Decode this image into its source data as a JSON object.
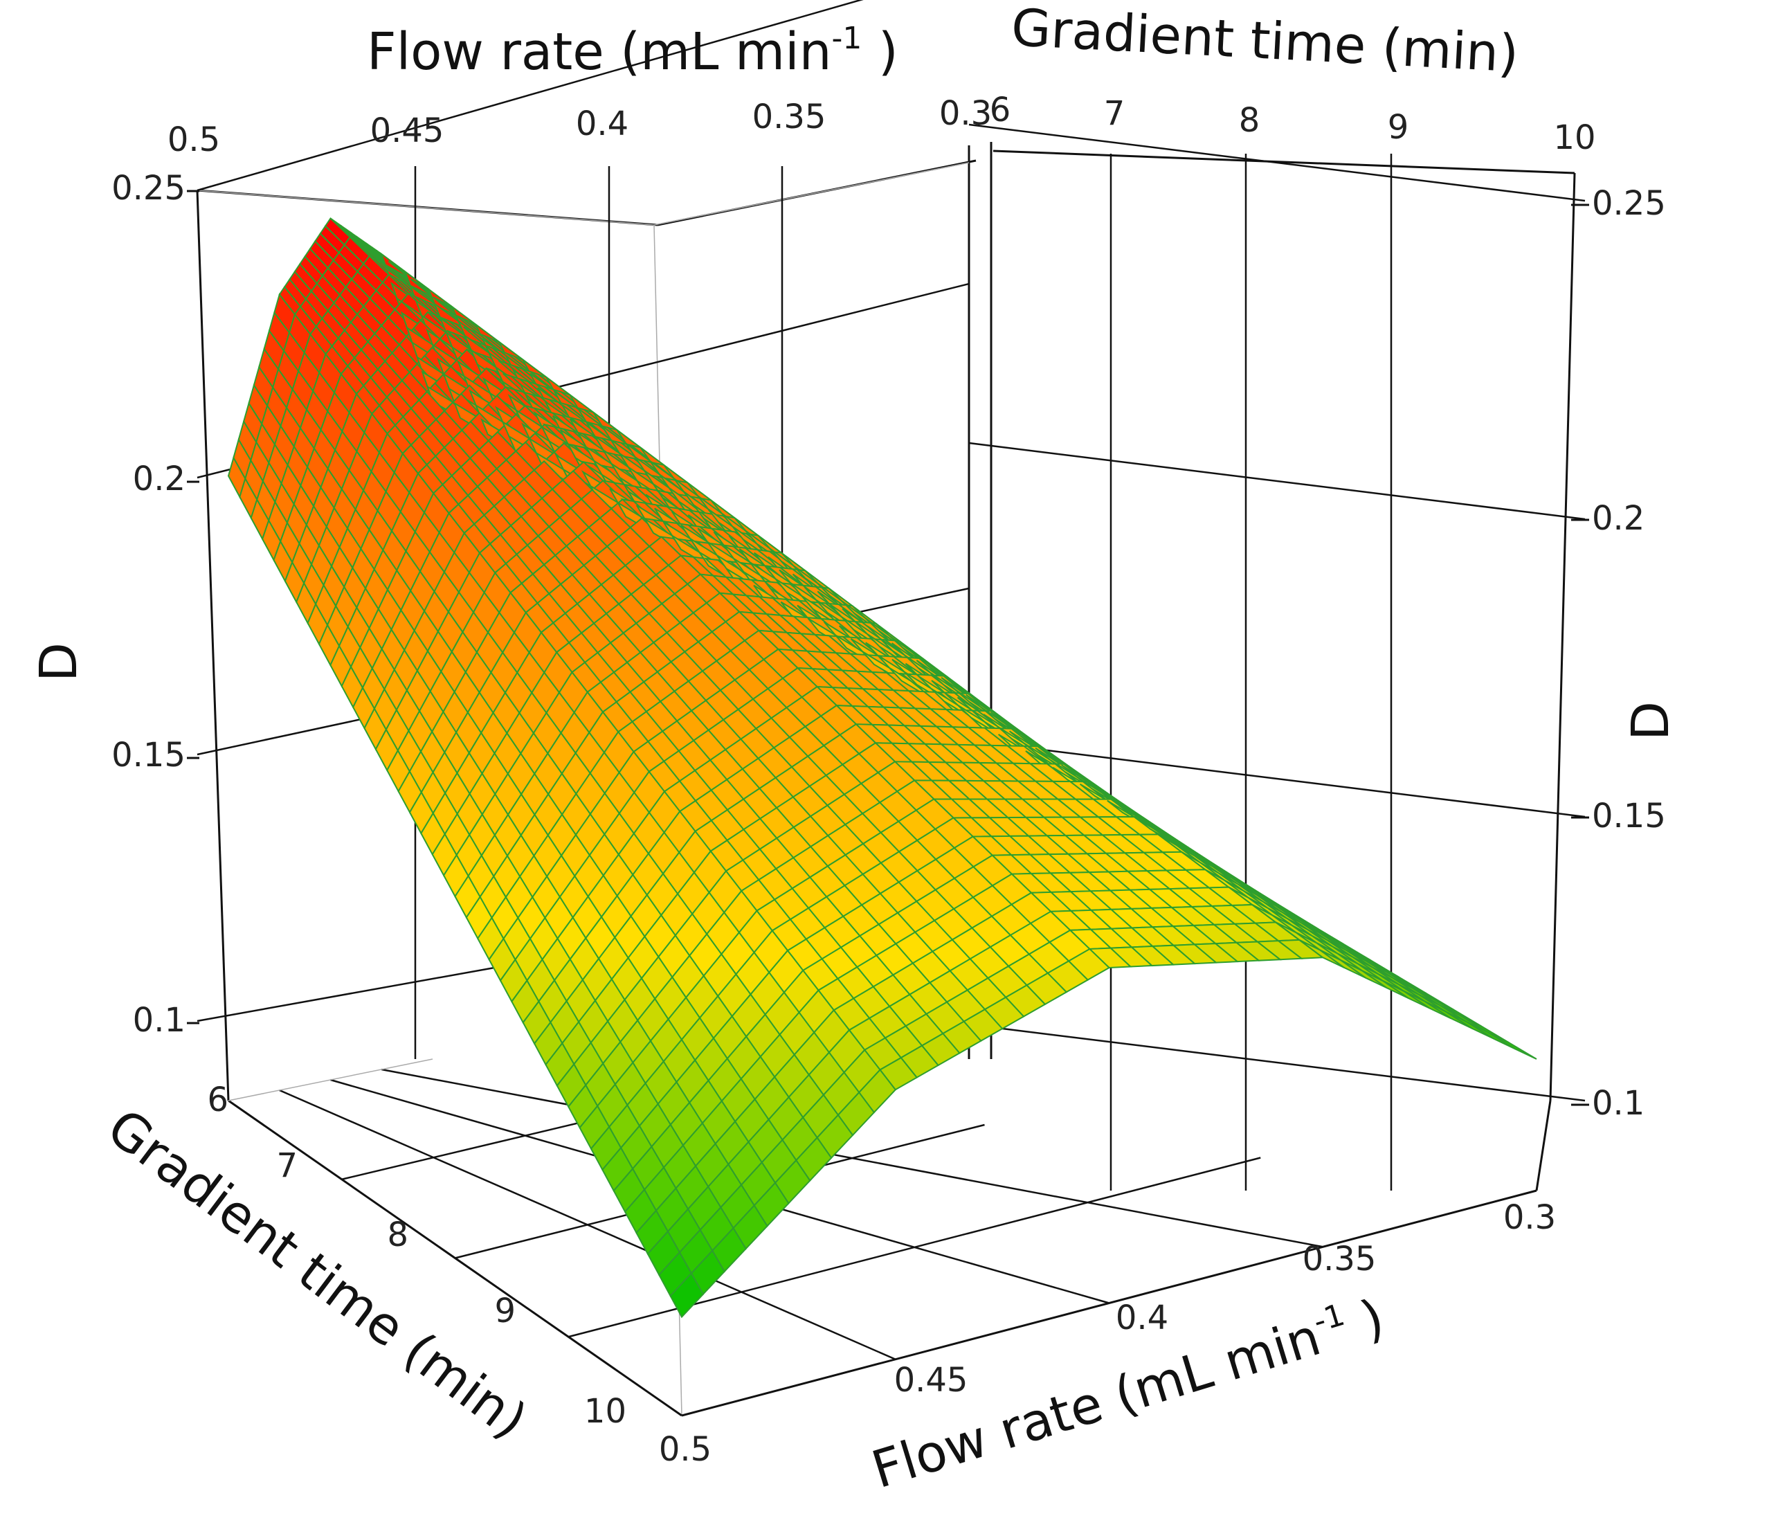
{
  "chart_data": {
    "type": "surface",
    "zlabel": "D",
    "x_axis": {
      "label": "Flow rate (mL min",
      "label_sup": "-1",
      "label_close": " )",
      "range": [
        0.3,
        0.5
      ],
      "front_ticks": [
        "0.5",
        "0.45",
        "0.4",
        "0.35",
        "0.3"
      ],
      "top_ticks": [
        "0.5",
        "0.45",
        "0.4",
        "0.35",
        "0.3"
      ]
    },
    "y_axis": {
      "label": "Gradient time (min)",
      "range": [
        6,
        10
      ],
      "front_ticks": [
        "6",
        "7",
        "8",
        "9",
        "10"
      ],
      "top_ticks": [
        "6",
        "7",
        "8",
        "9",
        "10"
      ]
    },
    "z_axis": {
      "range": [
        0.09,
        0.25
      ],
      "left_ticks": [
        "0.25",
        "0.2",
        "0.15",
        "0.1"
      ],
      "right_ticks": [
        "0.25",
        "0.2",
        "0.15",
        "0.1"
      ]
    },
    "surface_samples": {
      "flow_rate": [
        0.5,
        0.45,
        0.4,
        0.35,
        0.3
      ],
      "gradient_time": [
        6,
        7,
        8,
        9,
        10
      ],
      "D": [
        [
          0.185,
          0.211,
          0.221,
          0.214,
          0.19
        ],
        [
          0.165,
          0.191,
          0.201,
          0.194,
          0.17
        ],
        [
          0.145,
          0.171,
          0.181,
          0.174,
          0.15
        ],
        [
          0.125,
          0.151,
          0.161,
          0.154,
          0.13
        ],
        [
          0.105,
          0.131,
          0.141,
          0.134,
          0.11
        ]
      ]
    },
    "colormap": [
      "#00c000",
      "#ffe000",
      "#ff8000",
      "#ff0000"
    ],
    "grid": true,
    "mesh_color": "#2e9e2e"
  }
}
